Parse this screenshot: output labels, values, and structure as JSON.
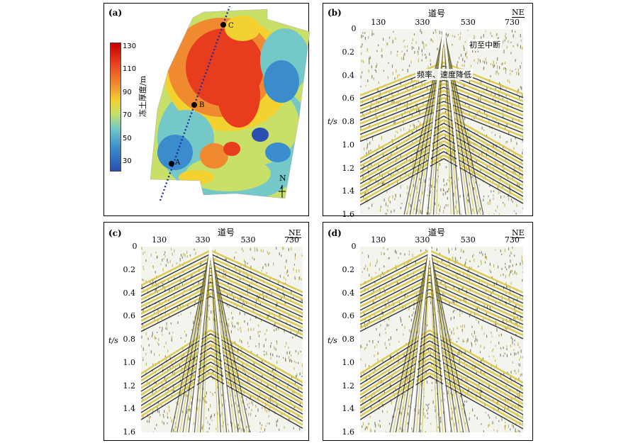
{
  "panels": {
    "a": {
      "label": "(a)",
      "colorbar": {
        "title": "冻土厚度/m",
        "ticks": [
          "130",
          "110",
          "90",
          "70",
          "50",
          "30"
        ],
        "colors": [
          "#c40000",
          "#e83c1e",
          "#f08a30",
          "#f3d130",
          "#c8e068",
          "#74c8c8",
          "#3a8ccc",
          "#2a4fb0"
        ]
      },
      "points": [
        "A",
        "B",
        "C"
      ],
      "north": "N"
    },
    "b": {
      "label": "(b)",
      "title": "道号",
      "direction": "NE",
      "xticks": [
        "130",
        "330",
        "530",
        "730"
      ],
      "yticks": [
        "0",
        "0.2",
        "0.4",
        "0.6",
        "0.8",
        "1.0",
        "1.2",
        "1.4",
        "1.6"
      ],
      "ylabel": "t/s",
      "annotations": [
        "初至中断",
        "频率、速度降低"
      ]
    },
    "c": {
      "label": "(c)",
      "title": "道号",
      "direction": "NE",
      "xticks": [
        "130",
        "330",
        "530",
        "730"
      ],
      "yticks": [
        "0",
        "0.2",
        "0.4",
        "0.6",
        "0.8",
        "1.0",
        "1.2",
        "1.4",
        "1.6"
      ],
      "ylabel": "t/s"
    },
    "d": {
      "label": "(d)",
      "title": "道号",
      "direction": "NE",
      "xticks": [
        "130",
        "330",
        "530",
        "730"
      ],
      "yticks": [
        "0",
        "0.2",
        "0.4",
        "0.6",
        "0.8",
        "1.0",
        "1.2",
        "1.4",
        "1.6"
      ],
      "ylabel": "t/s"
    }
  }
}
